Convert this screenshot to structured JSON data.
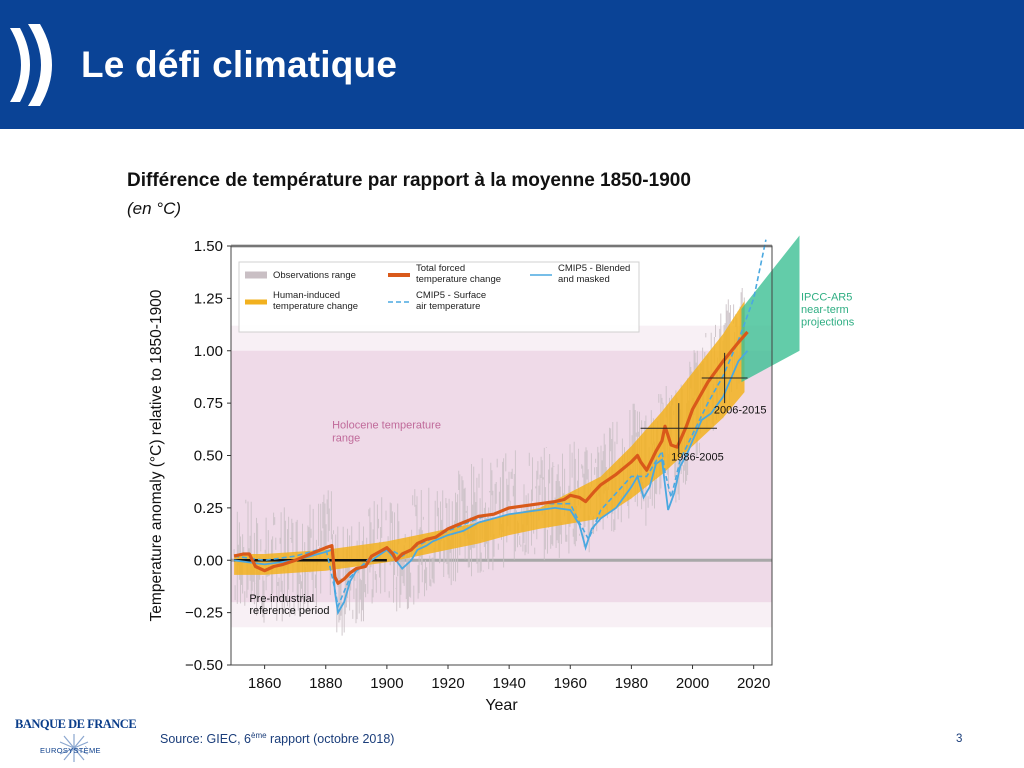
{
  "header": {
    "title": "Le défi climatique"
  },
  "subtitle": "Différence de température par rapport à la moyenne 1850-1900",
  "unit": "(en °C)",
  "source": {
    "prefix": "Source: GIEC, 6",
    "sup": "ème",
    "suffix": " rapport (octobre 2018)"
  },
  "page_number": "3",
  "logo": {
    "name": "BANQUE DE FRANCE",
    "sub": "EUROSYSTÈME"
  },
  "colors": {
    "header": "#0a4396",
    "observations": "#c9bfc4",
    "human_induced": "#f2b11f",
    "total_forced": "#d9591a",
    "cmip5_blended": "#4aa8e0",
    "cmip5_surface": "#4aa8e0",
    "holocene": "#ecd3e3",
    "projections": "#3cbf93"
  },
  "chart_data": {
    "type": "line",
    "xlabel": "Year",
    "ylabel": "Temperature anomaly (°C) relative to 1850-1900",
    "xlim": [
      1849,
      2026
    ],
    "ylim": [
      -0.5,
      1.5
    ],
    "xticks": [
      1860,
      1880,
      1900,
      1920,
      1940,
      1960,
      1980,
      2000,
      2020
    ],
    "yticks": [
      -0.5,
      -0.25,
      0.0,
      0.25,
      0.5,
      0.75,
      1.0,
      1.25,
      1.5
    ],
    "ytick_labels": [
      "−0.50",
      "−0.25",
      "0.00",
      "0.25",
      "0.50",
      "0.75",
      "1.00",
      "1.25",
      "1.50"
    ],
    "legend": {
      "placement": "top-left",
      "entries": [
        "Observations range",
        "Human-induced temperature change",
        "Total forced temperature change",
        "CMIP5 - Surface air temperature",
        "CMIP5 - Blended and masked"
      ]
    },
    "holocene_range": {
      "label": "Holocene temperature range",
      "y": [
        -0.2,
        1.0
      ]
    },
    "reference_period": {
      "label": "Pre-industrial reference period",
      "x": [
        1850,
        1900
      ],
      "y": 0.0
    },
    "projections": {
      "label": "IPCC-AR5 near-term projections",
      "x": [
        2016,
        2035
      ],
      "lower_start": 0.85,
      "upper_start": 1.2,
      "lower_end": 1.0,
      "upper_end": 1.55
    },
    "crosshairs": [
      {
        "label": "1986-2005",
        "x": [
          1986,
          2005
        ],
        "y": 0.63
      },
      {
        "label": "2006-2015",
        "x": [
          2006,
          2015
        ],
        "y": 0.87
      }
    ],
    "series": [
      {
        "name": "Total forced temperature change",
        "x": [
          1850,
          1853,
          1855,
          1857,
          1860,
          1863,
          1866,
          1870,
          1875,
          1880,
          1882,
          1883,
          1884,
          1886,
          1888,
          1890,
          1893,
          1895,
          1900,
          1902,
          1903,
          1905,
          1908,
          1910,
          1913,
          1916,
          1920,
          1925,
          1930,
          1935,
          1940,
          1945,
          1950,
          1955,
          1958,
          1960,
          1963,
          1965,
          1968,
          1970,
          1975,
          1980,
          1982,
          1983,
          1985,
          1988,
          1990,
          1991,
          1993,
          1995,
          1998,
          2000,
          2005,
          2010,
          2015,
          2018
        ],
        "y": [
          0.02,
          0.03,
          0.03,
          -0.03,
          -0.05,
          -0.03,
          -0.02,
          0.0,
          0.03,
          0.06,
          0.07,
          -0.08,
          -0.11,
          -0.09,
          -0.06,
          -0.04,
          -0.03,
          0.02,
          0.06,
          0.03,
          0.0,
          0.03,
          0.05,
          0.08,
          0.1,
          0.11,
          0.15,
          0.18,
          0.21,
          0.22,
          0.25,
          0.26,
          0.27,
          0.28,
          0.29,
          0.31,
          0.3,
          0.28,
          0.33,
          0.36,
          0.41,
          0.47,
          0.5,
          0.47,
          0.43,
          0.52,
          0.57,
          0.64,
          0.55,
          0.54,
          0.64,
          0.72,
          0.85,
          0.95,
          1.04,
          1.09
        ]
      },
      {
        "name": "Human-induced temperature change",
        "x": [
          1850,
          1860,
          1870,
          1880,
          1890,
          1900,
          1910,
          1920,
          1930,
          1940,
          1950,
          1960,
          1970,
          1980,
          1990,
          2000,
          2010,
          2017
        ],
        "y": [
          -0.02,
          -0.02,
          -0.01,
          0.0,
          0.02,
          0.04,
          0.07,
          0.1,
          0.13,
          0.17,
          0.2,
          0.25,
          0.3,
          0.42,
          0.56,
          0.72,
          0.88,
          1.02
        ]
      },
      {
        "name": "CMIP5 - Blended and masked",
        "x": [
          1850,
          1860,
          1870,
          1875,
          1880,
          1882,
          1883,
          1884,
          1886,
          1888,
          1890,
          1895,
          1900,
          1903,
          1905,
          1908,
          1910,
          1913,
          1915,
          1920,
          1925,
          1930,
          1935,
          1940,
          1945,
          1950,
          1955,
          1960,
          1963,
          1965,
          1967,
          1970,
          1975,
          1980,
          1982,
          1984,
          1986,
          1988,
          1990,
          1991,
          1992,
          1994,
          1996,
          1998,
          2000,
          2003,
          2006,
          2010,
          2015,
          2018
        ],
        "y": [
          0.0,
          -0.02,
          0.0,
          0.02,
          0.04,
          0.05,
          -0.15,
          -0.25,
          -0.2,
          -0.1,
          -0.05,
          0.0,
          0.05,
          0.0,
          -0.04,
          0.0,
          0.05,
          0.07,
          0.09,
          0.12,
          0.14,
          0.18,
          0.2,
          0.22,
          0.23,
          0.24,
          0.25,
          0.24,
          0.17,
          0.06,
          0.15,
          0.2,
          0.25,
          0.35,
          0.4,
          0.3,
          0.35,
          0.46,
          0.48,
          0.36,
          0.24,
          0.32,
          0.45,
          0.5,
          0.57,
          0.67,
          0.7,
          0.78,
          0.95,
          1.0
        ]
      },
      {
        "name": "CMIP5 - Surface air temperature",
        "x": [
          1850,
          1860,
          1870,
          1880,
          1883,
          1884,
          1888,
          1895,
          1900,
          1905,
          1910,
          1920,
          1930,
          1940,
          1950,
          1960,
          1963,
          1966,
          1970,
          1980,
          1985,
          1990,
          1991,
          1993,
          1996,
          2000,
          2005,
          2010,
          2015,
          2020,
          2024
        ],
        "y": [
          0.02,
          0.0,
          0.02,
          0.06,
          -0.14,
          -0.22,
          -0.08,
          0.02,
          0.06,
          0.02,
          0.07,
          0.14,
          0.2,
          0.25,
          0.27,
          0.27,
          0.18,
          0.1,
          0.24,
          0.4,
          0.4,
          0.52,
          0.42,
          0.3,
          0.48,
          0.6,
          0.75,
          0.88,
          1.05,
          1.25,
          1.53
        ]
      }
    ]
  }
}
